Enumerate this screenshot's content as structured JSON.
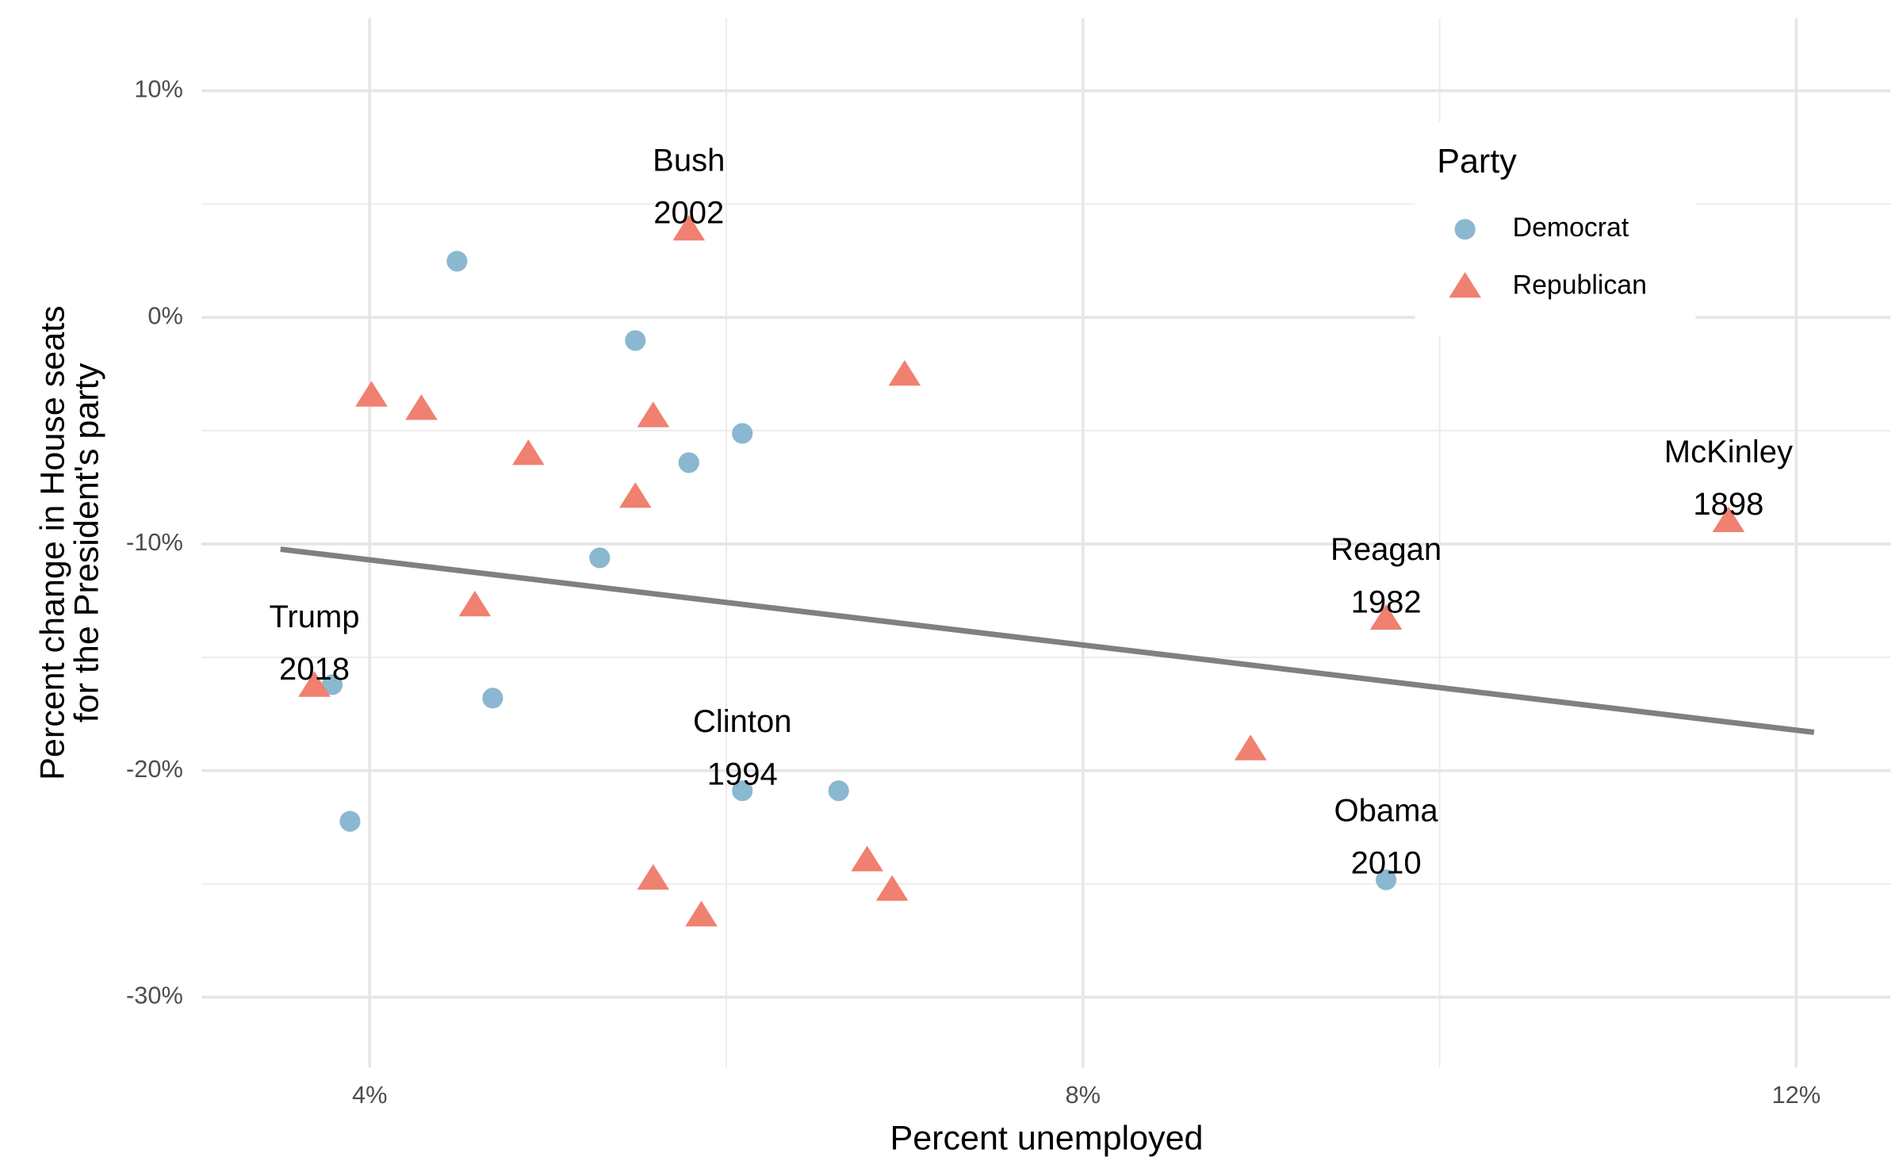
{
  "chart_data": {
    "type": "scatter",
    "x_label": "Percent unemployed",
    "y_label": [
      "Percent change in House seats",
      "for the President's party"
    ],
    "xlim": [
      3.056,
      12.53
    ],
    "ylim": [
      -33.1,
      13.2
    ],
    "xticks": [
      {
        "value": 4,
        "label": "4%"
      },
      {
        "value": 8,
        "label": "8%"
      },
      {
        "value": 12,
        "label": "12%"
      }
    ],
    "yticks": [
      {
        "value": -30,
        "label": "-30%"
      },
      {
        "value": -20,
        "label": "-20%"
      },
      {
        "value": -10,
        "label": "-10%"
      },
      {
        "value": 0,
        "label": "0%"
      },
      {
        "value": 10,
        "label": "10%"
      }
    ],
    "x_minor_grid": [
      6,
      10
    ],
    "y_minor_grid": [
      -25,
      -15,
      -5,
      5
    ],
    "grid": true,
    "legend": {
      "title": "Party",
      "position": "top-right"
    },
    "series": [
      {
        "name": "Democrat",
        "color": "#8ab8d0",
        "shape": "circle",
        "x": [
          4.49,
          5.49,
          6.09,
          5.79,
          5.29,
          3.79,
          4.69,
          3.89,
          6.09,
          6.63,
          9.7
        ],
        "values": [
          2.48,
          -1.02,
          -5.12,
          -6.41,
          -10.61,
          -16.21,
          -16.8,
          -22.24,
          -20.89,
          -20.89,
          -24.82
        ],
        "point_labels": [
          null,
          null,
          null,
          null,
          null,
          null,
          null,
          null,
          [
            "Clinton",
            "1994"
          ],
          null,
          [
            "Obama",
            "2010"
          ]
        ]
      },
      {
        "name": "Republican",
        "color": "#f08070",
        "shape": "triangle",
        "x": [
          5.79,
          4.01,
          4.29,
          5.59,
          7.0,
          4.89,
          5.49,
          4.59,
          3.69,
          9.7,
          11.62,
          8.94,
          5.59,
          5.86,
          6.79,
          6.93
        ],
        "values": [
          3.88,
          -3.45,
          -4.04,
          -4.36,
          -2.53,
          -6.03,
          -7.92,
          -12.71,
          -16.26,
          -13.3,
          -8.99,
          -19.06,
          -24.77,
          -26.39,
          -23.96,
          -25.26
        ],
        "point_labels": [
          [
            "Bush",
            "2002"
          ],
          null,
          null,
          null,
          null,
          null,
          null,
          null,
          [
            "Trump",
            "2018"
          ],
          [
            "Reagan",
            "1982"
          ],
          [
            "McKinley",
            "1898"
          ],
          null,
          null,
          null,
          null,
          null
        ]
      }
    ],
    "trend": {
      "color": "#808080",
      "x": [
        3.5,
        12.1
      ],
      "values": [
        -10.23,
        -18.31
      ]
    }
  }
}
